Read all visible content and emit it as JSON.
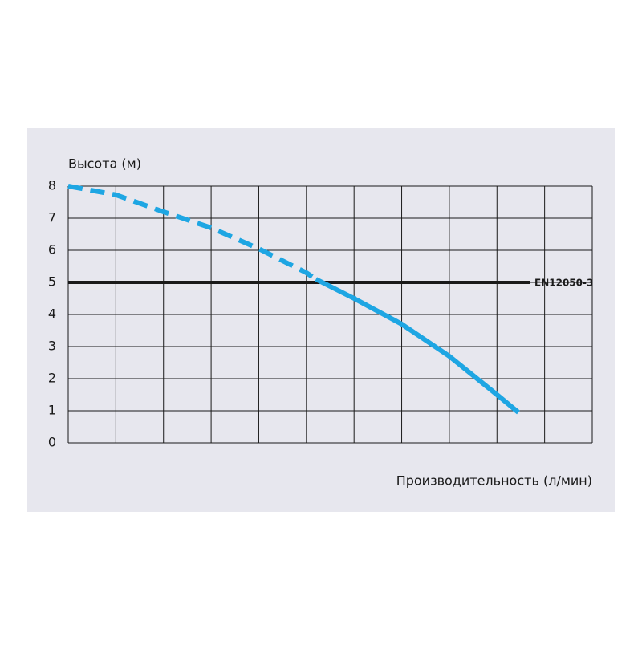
{
  "chart_data": {
    "type": "line",
    "ylabel": "Высота (м)",
    "xlabel": "Производительность (л/мин)",
    "xlim": [
      0,
      11
    ],
    "xticks": [
      0,
      1,
      2,
      3,
      4,
      5,
      6,
      7,
      8,
      9,
      10,
      11
    ],
    "xtick_labels": false,
    "ylim": [
      0,
      8
    ],
    "yticks": [
      0,
      1,
      2,
      3,
      4,
      5,
      6,
      7,
      8
    ],
    "grid": true,
    "series": [
      {
        "color": "#1ea6e3",
        "dashed": true,
        "x": [
          0,
          1,
          2,
          3,
          4,
          5,
          5.2
        ],
        "values": [
          8.0,
          7.73,
          7.2,
          6.7,
          6.05,
          5.3,
          5.1
        ]
      },
      {
        "color": "#1ea6e3",
        "dashed": false,
        "x": [
          5.2,
          6,
          7,
          8,
          9,
          9.45
        ],
        "values": [
          5.1,
          4.5,
          3.7,
          2.7,
          1.5,
          0.95
        ]
      }
    ],
    "hline": {
      "value": 5,
      "label": "EN12050-3",
      "color": "#1a1a1a",
      "label_color": "#1ea6e3"
    }
  }
}
